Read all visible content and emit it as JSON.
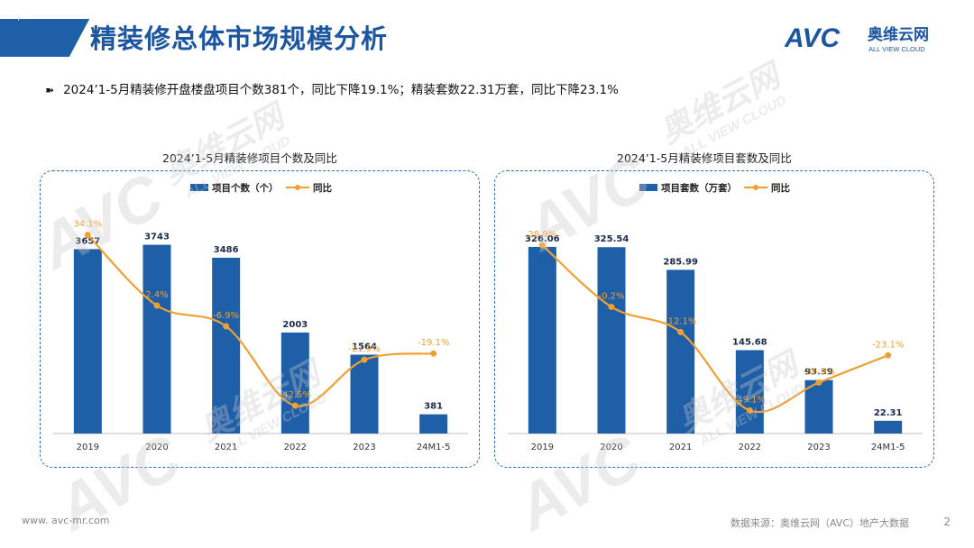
{
  "header": {
    "title": "精装修总体市场规模分析"
  },
  "logo": {
    "brand": "AVC",
    "cn_name": "奥维云网",
    "en_name": "ALL VIEW CLOUD"
  },
  "summary": "2024’1-5月精装修开盘楼盘项目个数381个，同比下降19.1%；精装套数22.31万套，同比下降23.1%",
  "watermark": {
    "brand": "AVC",
    "cn_name": "奥维云网",
    "en_name": "ALL VIEW CLOUD"
  },
  "colors": {
    "bar": "#1f5fa8",
    "line": "#f0a030",
    "yoy_label": "#f0a030",
    "title": "#1c56a0"
  },
  "chart_data": [
    {
      "type": "bar",
      "title": "2024’1-5月精装修项目个数及同比",
      "categories": [
        "2019",
        "2020",
        "2021",
        "2022",
        "2023",
        "24M1-5"
      ],
      "bar_series": {
        "name": "项目个数（个）",
        "values": [
          3657,
          3743,
          3486,
          2003,
          1564,
          381
        ],
        "labels": [
          "3657",
          "3743",
          "3486",
          "2003",
          "1564",
          "381"
        ]
      },
      "line_series": {
        "name": "同比",
        "values": [
          34.1,
          2.4,
          -6.9,
          -42.5,
          -21.9,
          -19.1
        ],
        "labels": [
          "34.1%",
          "2.4%",
          "-6.9%",
          "-42.5%",
          "-21.9%",
          "-19.1%"
        ]
      },
      "bar_ylim": [
        0,
        4200
      ],
      "line_ylim": [
        -55,
        40
      ],
      "legend": "top"
    },
    {
      "type": "bar",
      "title": "2024’1-5月精装修项目套数及同比",
      "categories": [
        "2019",
        "2020",
        "2021",
        "2022",
        "2023",
        "24M1-5"
      ],
      "bar_series": {
        "name": "项目套数（万套）",
        "values": [
          326.06,
          325.54,
          285.99,
          145.68,
          93.39,
          22.31
        ],
        "labels": [
          "326.06",
          "325.54",
          "285.99",
          "145.68",
          "93.39",
          "22.31"
        ]
      },
      "line_series": {
        "name": "同比",
        "values": [
          28.9,
          -0.2,
          -12.1,
          -49.1,
          -35.9,
          -23.1
        ],
        "labels": [
          "28.9%",
          "-0.2%",
          "-12.1%",
          "-49.1%",
          "-35.9%",
          "-23.1%"
        ]
      },
      "bar_ylim": [
        0,
        370
      ],
      "line_ylim": [
        -60,
        40
      ],
      "legend": "top"
    }
  ],
  "footer": {
    "url": "www. avc-mr.com",
    "source": "数据来源：奥维云网（AVC）地产大数据",
    "page": "2"
  }
}
